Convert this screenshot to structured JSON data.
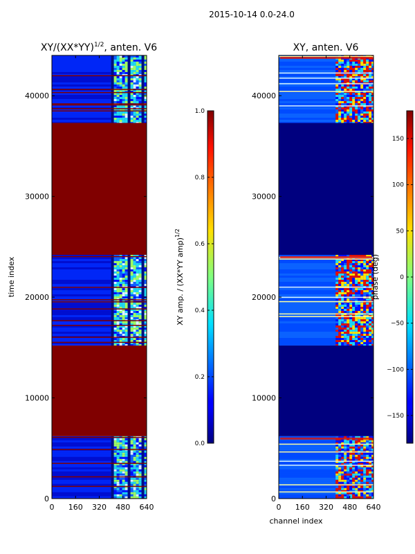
{
  "figure_title": "2015-10-14 0.0-24.0",
  "colors": {
    "dark_red": "#800000",
    "dark_blue": "#00007f",
    "blue": "#0010ff",
    "mid_blue": "#1060ff",
    "cyan": "#20d8f0",
    "green_yellow": "#a0ff60",
    "yellow": "#ffe000",
    "red": "#e01000",
    "light": "#d8f4ff",
    "axis": "#000000"
  },
  "chart_data": [
    {
      "id": "amp",
      "type": "heatmap",
      "title": "XY/(XX*YY)",
      "title_sup": "1/2",
      "title_suffix": ", anten. V6",
      "xlabel": "",
      "ylabel": "time index",
      "xlim": [
        0,
        640
      ],
      "ylim": [
        0,
        44000
      ],
      "xticks": [
        0,
        160,
        320,
        480,
        640
      ],
      "yticks": [
        0,
        10000,
        20000,
        30000,
        40000
      ],
      "data_extent_y": [
        0,
        44000
      ],
      "regions": [
        {
          "y0": 0,
          "y1": 6200,
          "kind": "noisy"
        },
        {
          "y0": 6200,
          "y1": 15200,
          "kind": "flag"
        },
        {
          "y0": 15200,
          "y1": 24200,
          "kind": "noisy"
        },
        {
          "y0": 24200,
          "y1": 37300,
          "kind": "flag"
        },
        {
          "y0": 37300,
          "y1": 44000,
          "kind": "noisy"
        }
      ],
      "active_channel_range": [
        400,
        640
      ],
      "colorbar": {
        "label": "XY amp. / (XX*YY amp)",
        "label_sup": "1/2",
        "range": [
          0.0,
          1.0
        ],
        "ticks": [
          "0.0",
          "0.2",
          "0.4",
          "0.6",
          "0.8",
          "1.0"
        ]
      }
    },
    {
      "id": "phase",
      "type": "heatmap",
      "title": "XY, anten. V6",
      "xlabel": "channel index",
      "ylabel": "",
      "xlim": [
        0,
        640
      ],
      "ylim": [
        0,
        44000
      ],
      "xticks": [
        0,
        160,
        320,
        480,
        640
      ],
      "yticks": [
        0,
        10000,
        20000,
        30000,
        40000
      ],
      "regions": [
        {
          "y0": 0,
          "y1": 6200,
          "kind": "phase_noisy"
        },
        {
          "y0": 6200,
          "y1": 15200,
          "kind": "zero"
        },
        {
          "y0": 15200,
          "y1": 24200,
          "kind": "phase_noisy"
        },
        {
          "y0": 24200,
          "y1": 37300,
          "kind": "zero"
        },
        {
          "y0": 37300,
          "y1": 44000,
          "kind": "phase_noisy"
        }
      ],
      "colorbar": {
        "label": "phase (deg)",
        "range": [
          -180,
          180
        ],
        "ticks": [
          "−150",
          "−100",
          "−50",
          "0",
          "50",
          "100",
          "150"
        ]
      }
    }
  ]
}
